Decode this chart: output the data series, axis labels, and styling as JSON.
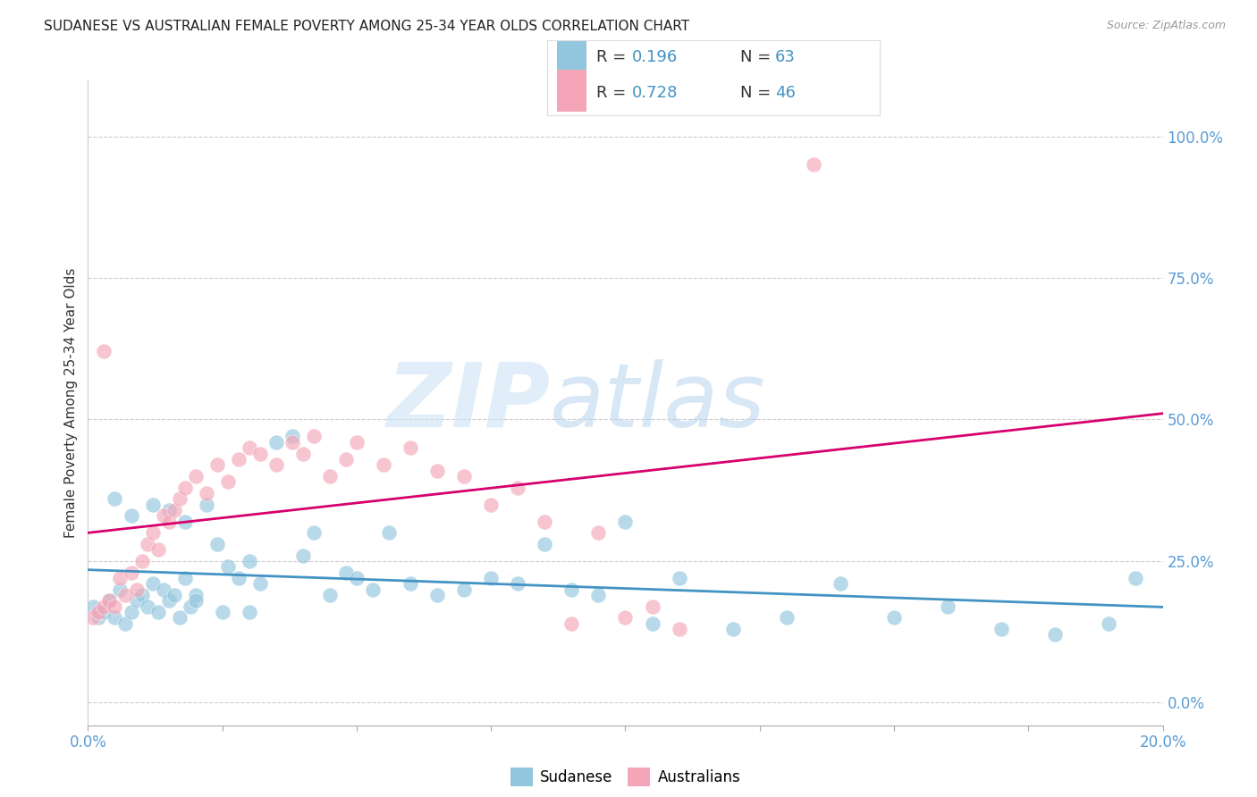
{
  "title": "SUDANESE VS AUSTRALIAN FEMALE POVERTY AMONG 25-34 YEAR OLDS CORRELATION CHART",
  "source": "Source: ZipAtlas.com",
  "ylabel": "Female Poverty Among 25-34 Year Olds",
  "blue_color": "#92c5de",
  "pink_color": "#f4a6b8",
  "blue_line_color": "#4393c3",
  "pink_line_color": "#d6006e",
  "title_color": "#222222",
  "source_color": "#999999",
  "right_axis_color": "#5b9bd5",
  "xmin": 0.0,
  "xmax": 0.2,
  "ymin": -0.04,
  "ymax": 1.1,
  "grid_color": "#cccccc",
  "bg_color": "#ffffff",
  "sudanese_x": [
    0.001,
    0.002,
    0.003,
    0.004,
    0.005,
    0.006,
    0.007,
    0.008,
    0.009,
    0.01,
    0.011,
    0.012,
    0.013,
    0.014,
    0.015,
    0.016,
    0.017,
    0.018,
    0.019,
    0.02,
    0.022,
    0.024,
    0.026,
    0.028,
    0.03,
    0.032,
    0.035,
    0.038,
    0.04,
    0.042,
    0.045,
    0.048,
    0.05,
    0.053,
    0.056,
    0.06,
    0.065,
    0.07,
    0.075,
    0.08,
    0.085,
    0.09,
    0.095,
    0.1,
    0.105,
    0.11,
    0.12,
    0.13,
    0.14,
    0.15,
    0.16,
    0.17,
    0.18,
    0.19,
    0.195,
    0.005,
    0.008,
    0.012,
    0.015,
    0.018,
    0.02,
    0.025,
    0.03
  ],
  "sudanese_y": [
    0.17,
    0.15,
    0.16,
    0.18,
    0.15,
    0.2,
    0.14,
    0.16,
    0.18,
    0.19,
    0.17,
    0.21,
    0.16,
    0.2,
    0.18,
    0.19,
    0.15,
    0.22,
    0.17,
    0.19,
    0.35,
    0.28,
    0.24,
    0.22,
    0.25,
    0.21,
    0.46,
    0.47,
    0.26,
    0.3,
    0.19,
    0.23,
    0.22,
    0.2,
    0.3,
    0.21,
    0.19,
    0.2,
    0.22,
    0.21,
    0.28,
    0.2,
    0.19,
    0.32,
    0.14,
    0.22,
    0.13,
    0.15,
    0.21,
    0.15,
    0.17,
    0.13,
    0.12,
    0.14,
    0.22,
    0.36,
    0.33,
    0.35,
    0.34,
    0.32,
    0.18,
    0.16,
    0.16
  ],
  "australians_x": [
    0.001,
    0.002,
    0.003,
    0.004,
    0.005,
    0.006,
    0.007,
    0.008,
    0.009,
    0.01,
    0.011,
    0.012,
    0.013,
    0.014,
    0.015,
    0.016,
    0.017,
    0.018,
    0.02,
    0.022,
    0.024,
    0.026,
    0.028,
    0.03,
    0.032,
    0.035,
    0.038,
    0.04,
    0.042,
    0.045,
    0.048,
    0.05,
    0.055,
    0.06,
    0.065,
    0.07,
    0.075,
    0.08,
    0.085,
    0.09,
    0.095,
    0.1,
    0.105,
    0.11,
    0.003,
    0.135
  ],
  "australians_y": [
    0.15,
    0.16,
    0.17,
    0.18,
    0.17,
    0.22,
    0.19,
    0.23,
    0.2,
    0.25,
    0.28,
    0.3,
    0.27,
    0.33,
    0.32,
    0.34,
    0.36,
    0.38,
    0.4,
    0.37,
    0.42,
    0.39,
    0.43,
    0.45,
    0.44,
    0.42,
    0.46,
    0.44,
    0.47,
    0.4,
    0.43,
    0.46,
    0.42,
    0.45,
    0.41,
    0.4,
    0.35,
    0.38,
    0.32,
    0.14,
    0.3,
    0.15,
    0.17,
    0.13,
    0.62,
    0.95
  ]
}
